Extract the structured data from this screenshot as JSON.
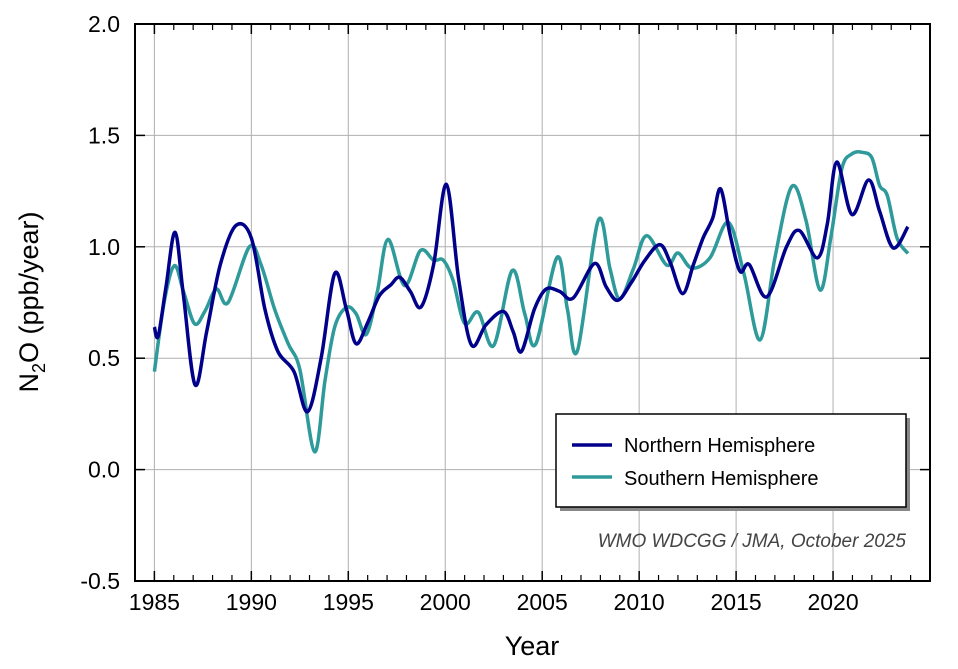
{
  "chart_data": {
    "type": "line",
    "title": "",
    "xlabel": "Year",
    "ylabel": "N2O (ppb/year)",
    "ylabel_parts": {
      "pre": "N",
      "sub": "2",
      "post": "O (ppb/year)"
    },
    "xlim": [
      1984,
      2025
    ],
    "ylim": [
      -0.5,
      2.0
    ],
    "x_ticks": [
      1985,
      1990,
      1995,
      2000,
      2005,
      2010,
      2015,
      2020
    ],
    "x_tick_labels": [
      "1985",
      "1990",
      "1995",
      "2000",
      "2005",
      "2010",
      "2015",
      "2020"
    ],
    "y_ticks": [
      -0.5,
      0.0,
      0.5,
      1.0,
      1.5,
      2.0
    ],
    "y_tick_labels": [
      "-0.5",
      "0.0",
      "0.5",
      "1.0",
      "1.5",
      "2.0"
    ],
    "grid": true,
    "legend_position": "bottom-right",
    "annotation": "WMO WDCGG / JMA, October 2025",
    "series": [
      {
        "name": "Northern Hemisphere",
        "color": "#00008b",
        "x": [
          1985.0,
          1985.2,
          1985.6,
          1986.07,
          1986.5,
          1987.1,
          1987.7,
          1988.4,
          1989.2,
          1990.0,
          1990.7,
          1991.37,
          1992.2,
          1992.9,
          1993.6,
          1994.3,
          1994.9,
          1995.4,
          1996.0,
          1996.6,
          1997.2,
          1997.65,
          1998.2,
          1998.75,
          1999.4,
          2000.06,
          2000.7,
          2001.35,
          2002.1,
          2003.0,
          2003.5,
          2003.93,
          2004.6,
          2005.2,
          2005.9,
          2006.6,
          2007.7,
          2008.3,
          2008.9,
          2009.6,
          2010.3,
          2011.07,
          2011.6,
          2012.24,
          2012.8,
          2013.3,
          2013.8,
          2014.2,
          2014.7,
          2015.2,
          2015.68,
          2016.58,
          2017.6,
          2018.26,
          2019.19,
          2019.7,
          2020.19,
          2020.97,
          2021.83,
          2022.4,
          2023.1,
          2023.86
        ],
        "y": [
          0.64,
          0.6,
          0.82,
          1.065,
          0.78,
          0.38,
          0.62,
          0.92,
          1.095,
          1.04,
          0.72,
          0.53,
          0.44,
          0.26,
          0.5,
          0.88,
          0.72,
          0.565,
          0.66,
          0.78,
          0.83,
          0.863,
          0.8,
          0.73,
          0.92,
          1.28,
          0.85,
          0.56,
          0.65,
          0.71,
          0.62,
          0.53,
          0.72,
          0.81,
          0.8,
          0.77,
          0.925,
          0.82,
          0.76,
          0.84,
          0.94,
          1.01,
          0.93,
          0.79,
          0.92,
          1.04,
          1.13,
          1.26,
          1.05,
          0.89,
          0.92,
          0.775,
          1.0,
          1.073,
          0.95,
          1.1,
          1.38,
          1.145,
          1.3,
          1.16,
          0.995,
          1.09
        ]
      },
      {
        "name": "Southern Hemisphere",
        "color": "#2e9a9a",
        "x": [
          1985.0,
          1985.5,
          1986.03,
          1986.5,
          1987.07,
          1987.6,
          1988.2,
          1988.8,
          1989.9,
          1990.5,
          1991.2,
          1991.9,
          1992.5,
          1993.26,
          1993.8,
          1994.3,
          1994.9,
          1995.4,
          1995.93,
          1996.5,
          1997.05,
          1997.9,
          1998.72,
          1999.4,
          1999.9,
          2000.4,
          2001.0,
          2001.7,
          2002.5,
          2003.45,
          2004.1,
          2004.67,
          2005.77,
          2006.3,
          2006.82,
          2007.89,
          2008.5,
          2009.0,
          2009.7,
          2010.38,
          2011.42,
          2012.0,
          2012.7,
          2013.65,
          2014.6,
          2015.4,
          2016.24,
          2017.0,
          2017.87,
          2018.6,
          2019.33,
          2019.9,
          2020.45,
          2020.97,
          2021.5,
          2022.0,
          2022.4,
          2022.8,
          2023.3,
          2023.86
        ],
        "y": [
          0.44,
          0.75,
          0.915,
          0.8,
          0.655,
          0.71,
          0.81,
          0.75,
          1.0,
          0.92,
          0.72,
          0.565,
          0.45,
          0.08,
          0.4,
          0.64,
          0.728,
          0.7,
          0.607,
          0.8,
          1.033,
          0.826,
          0.983,
          0.94,
          0.94,
          0.85,
          0.656,
          0.706,
          0.557,
          0.893,
          0.7,
          0.564,
          0.953,
          0.72,
          0.534,
          1.118,
          0.9,
          0.766,
          0.9,
          1.05,
          0.918,
          0.972,
          0.905,
          0.95,
          1.11,
          0.88,
          0.582,
          0.95,
          1.27,
          1.12,
          0.806,
          1.05,
          1.35,
          1.417,
          1.424,
          1.4,
          1.275,
          1.23,
          1.04,
          0.97
        ]
      }
    ]
  }
}
